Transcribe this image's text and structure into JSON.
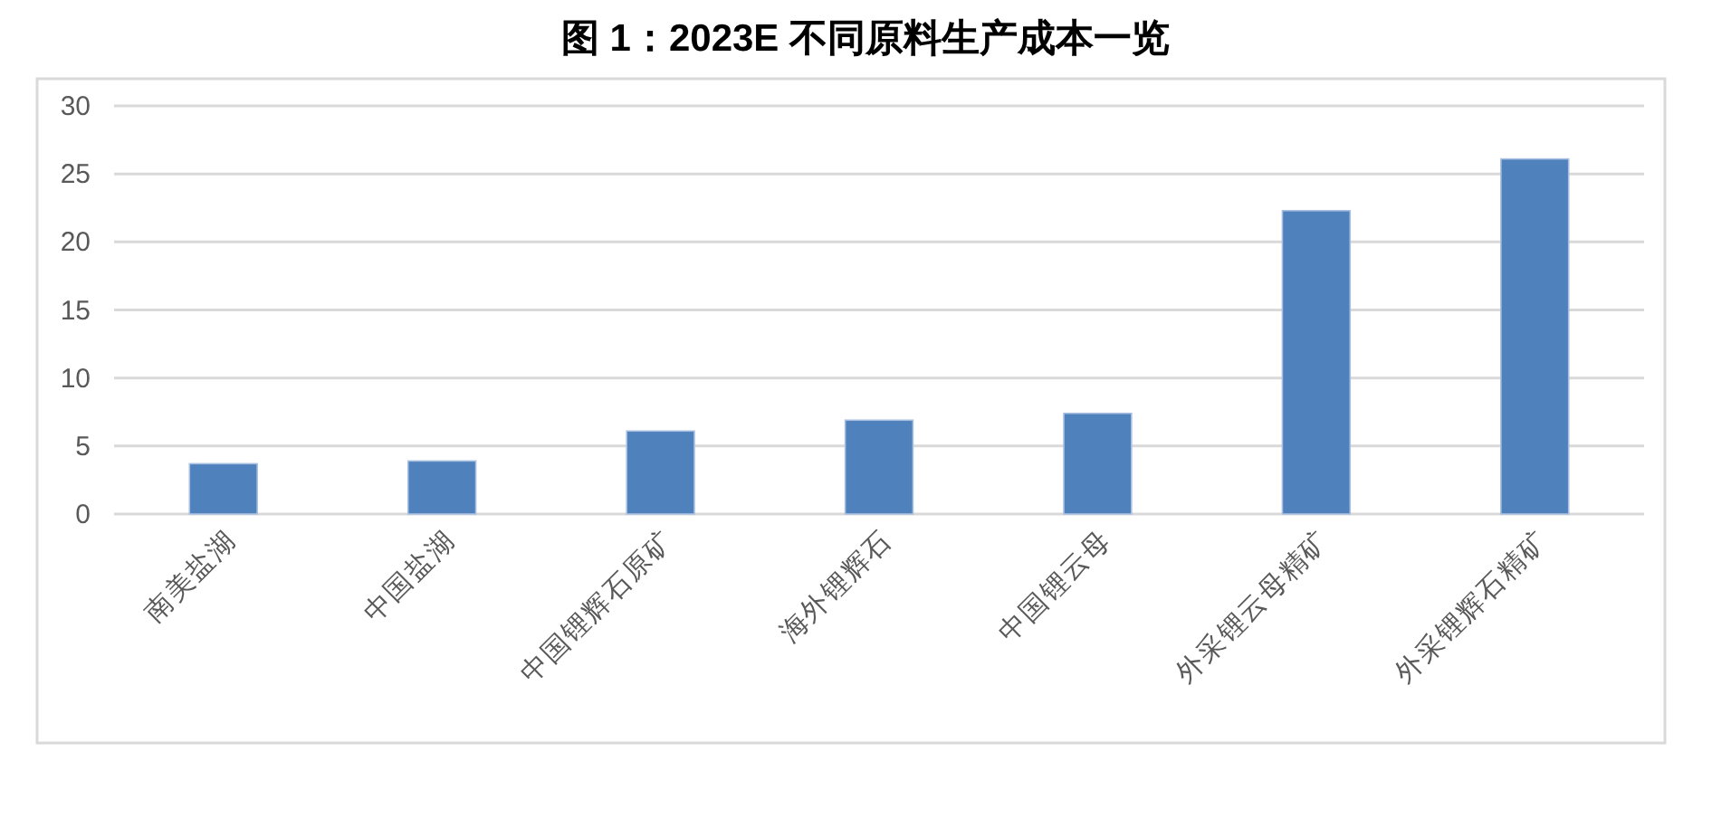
{
  "chart_data": {
    "type": "bar",
    "title": "图 1：2023E 不同原料生产成本一览",
    "categories": [
      "南美盐湖",
      "中国盐湖",
      "中国锂辉石原矿",
      "海外锂辉石",
      "中国锂云母",
      "外采锂云母精矿",
      "外采锂辉石精矿"
    ],
    "values": [
      3.7,
      3.9,
      6.1,
      6.9,
      7.4,
      22.3,
      26.1
    ],
    "color": "#4f81bd",
    "ylim": [
      0,
      30
    ],
    "yticks": [
      0,
      5,
      10,
      15,
      20,
      25,
      30
    ],
    "grid": "y"
  }
}
